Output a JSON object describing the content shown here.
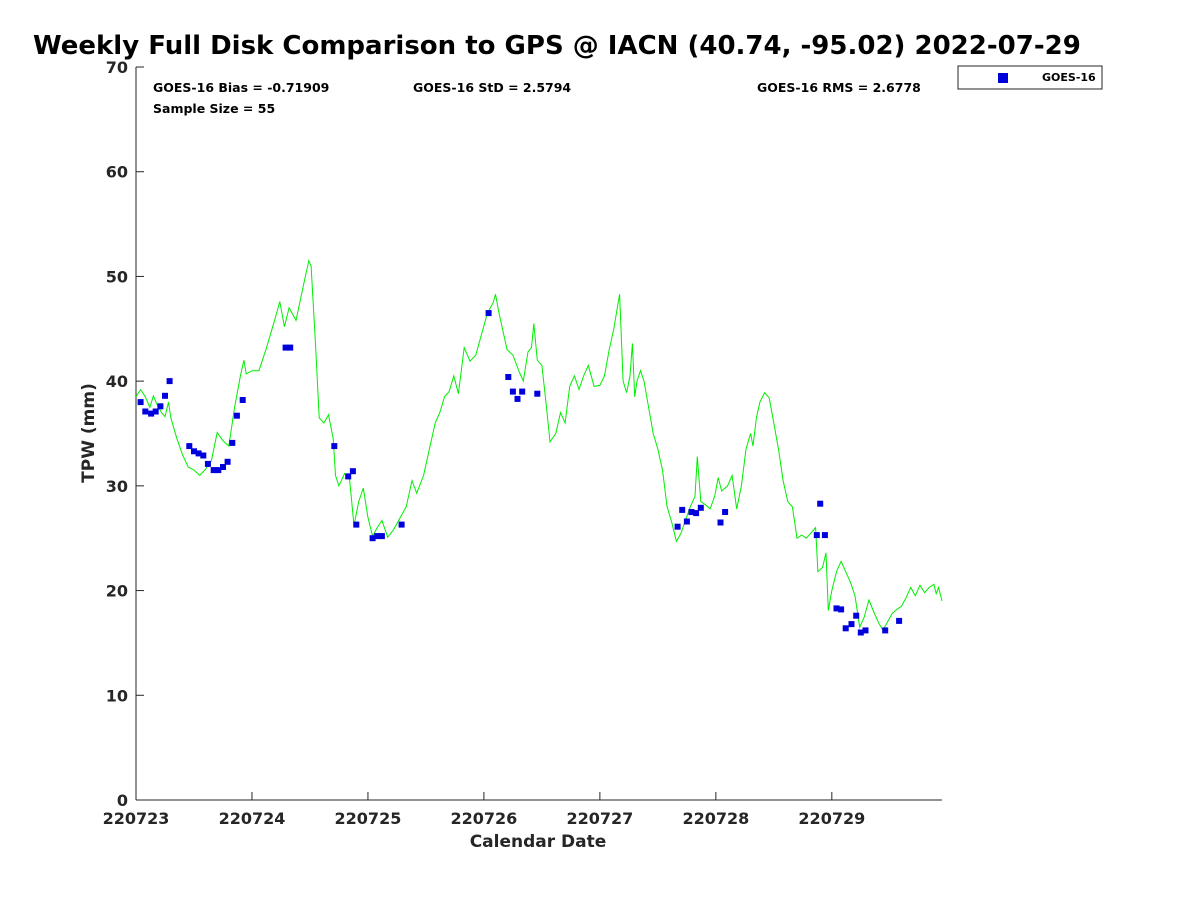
{
  "chart_data": {
    "type": "scatter",
    "title": "Weekly Full Disk Comparison to GPS @ IACN (40.74, -95.02) 2022-07-29",
    "xlabel": "Calendar Date",
    "ylabel": "TPW (mm)",
    "x_ticks": [
      "220723",
      "220724",
      "220725",
      "220726",
      "220727",
      "220728",
      "220729"
    ],
    "y_ticks": [
      "0",
      "10",
      "20",
      "30",
      "40",
      "50",
      "60",
      "70"
    ],
    "xlim_days": [
      0,
      6.95
    ],
    "ylim": [
      0,
      70
    ],
    "grid": false,
    "legend_position": "top-right, outside plot",
    "stats": {
      "bias": "GOES-16 Bias = -0.71909",
      "std": "GOES-16 StD = 2.5794",
      "rms": "GOES-16 RMS = 2.6778",
      "sample": "Sample Size = 55"
    },
    "series": [
      {
        "name": "GOES-16",
        "style": "square-markers",
        "color": "#0000dd",
        "points": [
          [
            0.04,
            38.0
          ],
          [
            0.08,
            37.1
          ],
          [
            0.13,
            36.9
          ],
          [
            0.17,
            37.1
          ],
          [
            0.21,
            37.6
          ],
          [
            0.25,
            38.6
          ],
          [
            0.29,
            40.0
          ],
          [
            0.46,
            33.8
          ],
          [
            0.5,
            33.3
          ],
          [
            0.54,
            33.1
          ],
          [
            0.58,
            32.9
          ],
          [
            0.62,
            32.1
          ],
          [
            0.67,
            31.5
          ],
          [
            0.71,
            31.5
          ],
          [
            0.75,
            31.8
          ],
          [
            0.79,
            32.3
          ],
          [
            0.83,
            34.1
          ],
          [
            0.87,
            36.7
          ],
          [
            0.92,
            38.2
          ],
          [
            1.29,
            43.2
          ],
          [
            1.33,
            43.2
          ],
          [
            1.71,
            33.8
          ],
          [
            1.83,
            30.9
          ],
          [
            1.87,
            31.4
          ],
          [
            1.9,
            26.3
          ],
          [
            2.04,
            25.0
          ],
          [
            2.08,
            25.2
          ],
          [
            2.12,
            25.2
          ],
          [
            2.29,
            26.3
          ],
          [
            3.04,
            46.5
          ],
          [
            3.21,
            40.4
          ],
          [
            3.25,
            39.0
          ],
          [
            3.29,
            38.3
          ],
          [
            3.33,
            39.0
          ],
          [
            3.46,
            38.8
          ],
          [
            4.67,
            26.1
          ],
          [
            4.71,
            27.7
          ],
          [
            4.75,
            26.6
          ],
          [
            4.79,
            27.5
          ],
          [
            4.83,
            27.4
          ],
          [
            4.87,
            27.9
          ],
          [
            5.04,
            26.5
          ],
          [
            5.08,
            27.5
          ],
          [
            5.87,
            25.3
          ],
          [
            5.9,
            28.3
          ],
          [
            5.94,
            25.3
          ],
          [
            6.04,
            18.3
          ],
          [
            6.08,
            18.2
          ],
          [
            6.12,
            16.4
          ],
          [
            6.17,
            16.8
          ],
          [
            6.21,
            17.6
          ],
          [
            6.25,
            16.0
          ],
          [
            6.29,
            16.2
          ],
          [
            6.46,
            16.2
          ],
          [
            6.58,
            17.1
          ]
        ]
      },
      {
        "style": "line",
        "color": "#00ee00",
        "points": [
          [
            0.0,
            38.5
          ],
          [
            0.04,
            39.2
          ],
          [
            0.08,
            38.5
          ],
          [
            0.12,
            37.5
          ],
          [
            0.15,
            38.6
          ],
          [
            0.18,
            37.8
          ],
          [
            0.22,
            37.0
          ],
          [
            0.25,
            36.6
          ],
          [
            0.28,
            38.0
          ],
          [
            0.3,
            36.5
          ],
          [
            0.35,
            34.6
          ],
          [
            0.4,
            33.0
          ],
          [
            0.45,
            31.8
          ],
          [
            0.5,
            31.5
          ],
          [
            0.55,
            31.0
          ],
          [
            0.6,
            31.6
          ],
          [
            0.65,
            32.4
          ],
          [
            0.7,
            35.1
          ],
          [
            0.75,
            34.3
          ],
          [
            0.8,
            33.8
          ],
          [
            0.85,
            37.5
          ],
          [
            0.9,
            40.5
          ],
          [
            0.93,
            42.0
          ],
          [
            0.95,
            40.7
          ],
          [
            1.0,
            41.0
          ],
          [
            1.06,
            41.0
          ],
          [
            1.12,
            43.0
          ],
          [
            1.2,
            46.0
          ],
          [
            1.24,
            47.6
          ],
          [
            1.28,
            45.2
          ],
          [
            1.32,
            47.0
          ],
          [
            1.38,
            45.8
          ],
          [
            1.45,
            49.5
          ],
          [
            1.49,
            51.5
          ],
          [
            1.51,
            51.0
          ],
          [
            1.55,
            43.0
          ],
          [
            1.58,
            36.5
          ],
          [
            1.62,
            36.0
          ],
          [
            1.66,
            36.8
          ],
          [
            1.7,
            34.5
          ],
          [
            1.72,
            31.0
          ],
          [
            1.75,
            30.0
          ],
          [
            1.8,
            31.2
          ],
          [
            1.84,
            30.8
          ],
          [
            1.88,
            26.2
          ],
          [
            1.92,
            28.5
          ],
          [
            1.96,
            29.8
          ],
          [
            2.0,
            27.0
          ],
          [
            2.04,
            25.2
          ],
          [
            2.08,
            26.0
          ],
          [
            2.12,
            26.7
          ],
          [
            2.17,
            25.1
          ],
          [
            2.22,
            25.8
          ],
          [
            2.28,
            27.0
          ],
          [
            2.33,
            28.0
          ],
          [
            2.38,
            30.5
          ],
          [
            2.42,
            29.3
          ],
          [
            2.48,
            31.0
          ],
          [
            2.52,
            33.0
          ],
          [
            2.58,
            36.0
          ],
          [
            2.62,
            37.0
          ],
          [
            2.66,
            38.5
          ],
          [
            2.7,
            39.0
          ],
          [
            2.74,
            40.5
          ],
          [
            2.78,
            38.8
          ],
          [
            2.83,
            43.2
          ],
          [
            2.88,
            41.9
          ],
          [
            2.93,
            42.5
          ],
          [
            2.98,
            44.5
          ],
          [
            3.03,
            46.5
          ],
          [
            3.08,
            47.5
          ],
          [
            3.1,
            48.3
          ],
          [
            3.13,
            46.5
          ],
          [
            3.2,
            43.0
          ],
          [
            3.25,
            42.5
          ],
          [
            3.3,
            41.0
          ],
          [
            3.34,
            40.0
          ],
          [
            3.38,
            42.8
          ],
          [
            3.41,
            43.2
          ],
          [
            3.43,
            45.5
          ],
          [
            3.46,
            42.0
          ],
          [
            3.5,
            41.5
          ],
          [
            3.54,
            37.5
          ],
          [
            3.57,
            34.2
          ],
          [
            3.62,
            35.0
          ],
          [
            3.66,
            37.0
          ],
          [
            3.7,
            36.0
          ],
          [
            3.74,
            39.5
          ],
          [
            3.78,
            40.5
          ],
          [
            3.82,
            39.2
          ],
          [
            3.86,
            40.5
          ],
          [
            3.9,
            41.5
          ],
          [
            3.95,
            39.5
          ],
          [
            4.0,
            39.6
          ],
          [
            4.04,
            40.5
          ],
          [
            4.08,
            43.0
          ],
          [
            4.12,
            45.0
          ],
          [
            4.15,
            47.0
          ],
          [
            4.17,
            48.3
          ],
          [
            4.2,
            40.0
          ],
          [
            4.23,
            38.9
          ],
          [
            4.26,
            40.5
          ],
          [
            4.28,
            43.6
          ],
          [
            4.3,
            38.5
          ],
          [
            4.32,
            40.0
          ],
          [
            4.35,
            41.0
          ],
          [
            4.38,
            40.0
          ],
          [
            4.42,
            37.5
          ],
          [
            4.46,
            35.0
          ],
          [
            4.5,
            33.5
          ],
          [
            4.54,
            31.5
          ],
          [
            4.58,
            28.0
          ],
          [
            4.62,
            26.5
          ],
          [
            4.66,
            24.7
          ],
          [
            4.7,
            25.5
          ],
          [
            4.74,
            26.8
          ],
          [
            4.78,
            28.0
          ],
          [
            4.82,
            29.0
          ],
          [
            4.84,
            32.8
          ],
          [
            4.87,
            28.5
          ],
          [
            4.91,
            28.2
          ],
          [
            4.95,
            27.8
          ],
          [
            4.99,
            29.0
          ],
          [
            5.02,
            30.8
          ],
          [
            5.05,
            29.5
          ],
          [
            5.1,
            30.0
          ],
          [
            5.14,
            31.0
          ],
          [
            5.18,
            27.8
          ],
          [
            5.22,
            30.0
          ],
          [
            5.26,
            33.5
          ],
          [
            5.3,
            35.0
          ],
          [
            5.32,
            33.8
          ],
          [
            5.35,
            36.5
          ],
          [
            5.38,
            38.0
          ],
          [
            5.42,
            38.9
          ],
          [
            5.46,
            38.4
          ],
          [
            5.5,
            36.0
          ],
          [
            5.54,
            33.5
          ],
          [
            5.58,
            30.5
          ],
          [
            5.62,
            28.5
          ],
          [
            5.66,
            28.0
          ],
          [
            5.7,
            25.0
          ],
          [
            5.74,
            25.3
          ],
          [
            5.78,
            25.0
          ],
          [
            5.82,
            25.5
          ],
          [
            5.86,
            26.0
          ],
          [
            5.88,
            21.8
          ],
          [
            5.92,
            22.2
          ],
          [
            5.95,
            23.6
          ],
          [
            5.97,
            18.1
          ],
          [
            6.0,
            20.0
          ],
          [
            6.04,
            21.8
          ],
          [
            6.08,
            22.8
          ],
          [
            6.12,
            21.8
          ],
          [
            6.16,
            20.8
          ],
          [
            6.2,
            19.5
          ],
          [
            6.24,
            16.5
          ],
          [
            6.28,
            17.5
          ],
          [
            6.32,
            19.1
          ],
          [
            6.36,
            18.0
          ],
          [
            6.4,
            17.0
          ],
          [
            6.44,
            16.2
          ],
          [
            6.48,
            17.0
          ],
          [
            6.52,
            17.8
          ],
          [
            6.56,
            18.2
          ],
          [
            6.6,
            18.5
          ],
          [
            6.64,
            19.3
          ],
          [
            6.68,
            20.3
          ],
          [
            6.72,
            19.5
          ],
          [
            6.76,
            20.5
          ],
          [
            6.8,
            19.8
          ],
          [
            6.84,
            20.3
          ],
          [
            6.88,
            20.6
          ],
          [
            6.9,
            19.7
          ],
          [
            6.92,
            20.3
          ],
          [
            6.95,
            19.0
          ]
        ]
      }
    ]
  }
}
